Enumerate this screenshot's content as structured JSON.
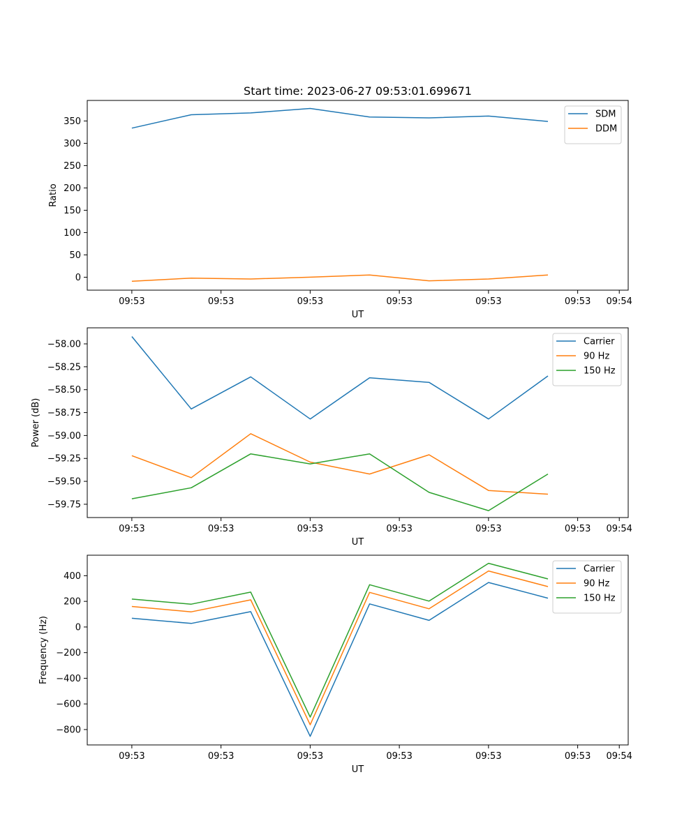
{
  "figure": {
    "title": "Start time: 2023-06-27 09:53:01.699671"
  },
  "chart_data": [
    {
      "type": "line",
      "xlabel": "UT",
      "ylabel": "Ratio",
      "x_tick_labels": [
        "09:53",
        "09:53",
        "09:53",
        "09:53",
        "09:53",
        "09:53",
        "09:54"
      ],
      "x": [
        1,
        2,
        3,
        4,
        5,
        6,
        7,
        8
      ],
      "xlim": [
        0.25,
        9.35
      ],
      "y_ticks": [
        0,
        50,
        100,
        150,
        200,
        250,
        300,
        350
      ],
      "ylim": [
        -29,
        396
      ],
      "legend_position": "top-right",
      "series": [
        {
          "name": "SDM",
          "color": "#1f77b4",
          "values": [
            334,
            364,
            368,
            378,
            359,
            357,
            361,
            349
          ]
        },
        {
          "name": "DDM",
          "color": "#ff7f0e",
          "values": [
            -9,
            -2,
            -4,
            0,
            5,
            -8,
            -4,
            5
          ]
        }
      ]
    },
    {
      "type": "line",
      "xlabel": "UT",
      "ylabel": "Power (dB)",
      "x_tick_labels": [
        "09:53",
        "09:53",
        "09:53",
        "09:53",
        "09:53",
        "09:53",
        "09:54"
      ],
      "x": [
        1,
        2,
        3,
        4,
        5,
        6,
        7,
        8
      ],
      "xlim": [
        0.25,
        9.35
      ],
      "y_ticks": [
        -59.75,
        -59.5,
        -59.25,
        -59.0,
        -58.75,
        -58.5,
        -58.25,
        -58.0
      ],
      "y_tick_labels": [
        "−59.75",
        "−59.50",
        "−59.25",
        "−59.00",
        "−58.75",
        "−58.50",
        "−58.25",
        "−58.00"
      ],
      "ylim": [
        -59.895,
        -57.825
      ],
      "legend_position": "top-right",
      "series": [
        {
          "name": "Carrier",
          "color": "#1f77b4",
          "values": [
            -57.92,
            -58.71,
            -58.36,
            -58.82,
            -58.37,
            -58.42,
            -58.82,
            -58.35
          ]
        },
        {
          "name": "90 Hz",
          "color": "#ff7f0e",
          "values": [
            -59.22,
            -59.46,
            -58.98,
            -59.29,
            -59.42,
            -59.21,
            -59.6,
            -59.64
          ]
        },
        {
          "name": "150 Hz",
          "color": "#2ca02c",
          "values": [
            -59.69,
            -59.57,
            -59.2,
            -59.31,
            -59.2,
            -59.62,
            -59.82,
            -59.42
          ]
        }
      ]
    },
    {
      "type": "line",
      "xlabel": "UT",
      "ylabel": "Frequency (Hz)",
      "x_tick_labels": [
        "09:53",
        "09:53",
        "09:53",
        "09:53",
        "09:53",
        "09:53",
        "09:54"
      ],
      "x": [
        1,
        2,
        3,
        4,
        5,
        6,
        7,
        8
      ],
      "xlim": [
        0.25,
        9.35
      ],
      "y_ticks": [
        -800,
        -600,
        -400,
        -200,
        0,
        200,
        400
      ],
      "y_tick_labels": [
        "−800",
        "−600",
        "−400",
        "−200",
        "0",
        "200",
        "400"
      ],
      "ylim": [
        -920,
        560
      ],
      "legend_position": "top-right",
      "series": [
        {
          "name": "Carrier",
          "color": "#1f77b4",
          "values": [
            68,
            28,
            120,
            -853,
            180,
            52,
            347,
            225
          ]
        },
        {
          "name": "90 Hz",
          "color": "#ff7f0e",
          "values": [
            160,
            118,
            212,
            -763,
            270,
            142,
            437,
            315
          ]
        },
        {
          "name": "150 Hz",
          "color": "#2ca02c",
          "values": [
            218,
            178,
            272,
            -703,
            330,
            202,
            497,
            375
          ]
        }
      ]
    }
  ]
}
